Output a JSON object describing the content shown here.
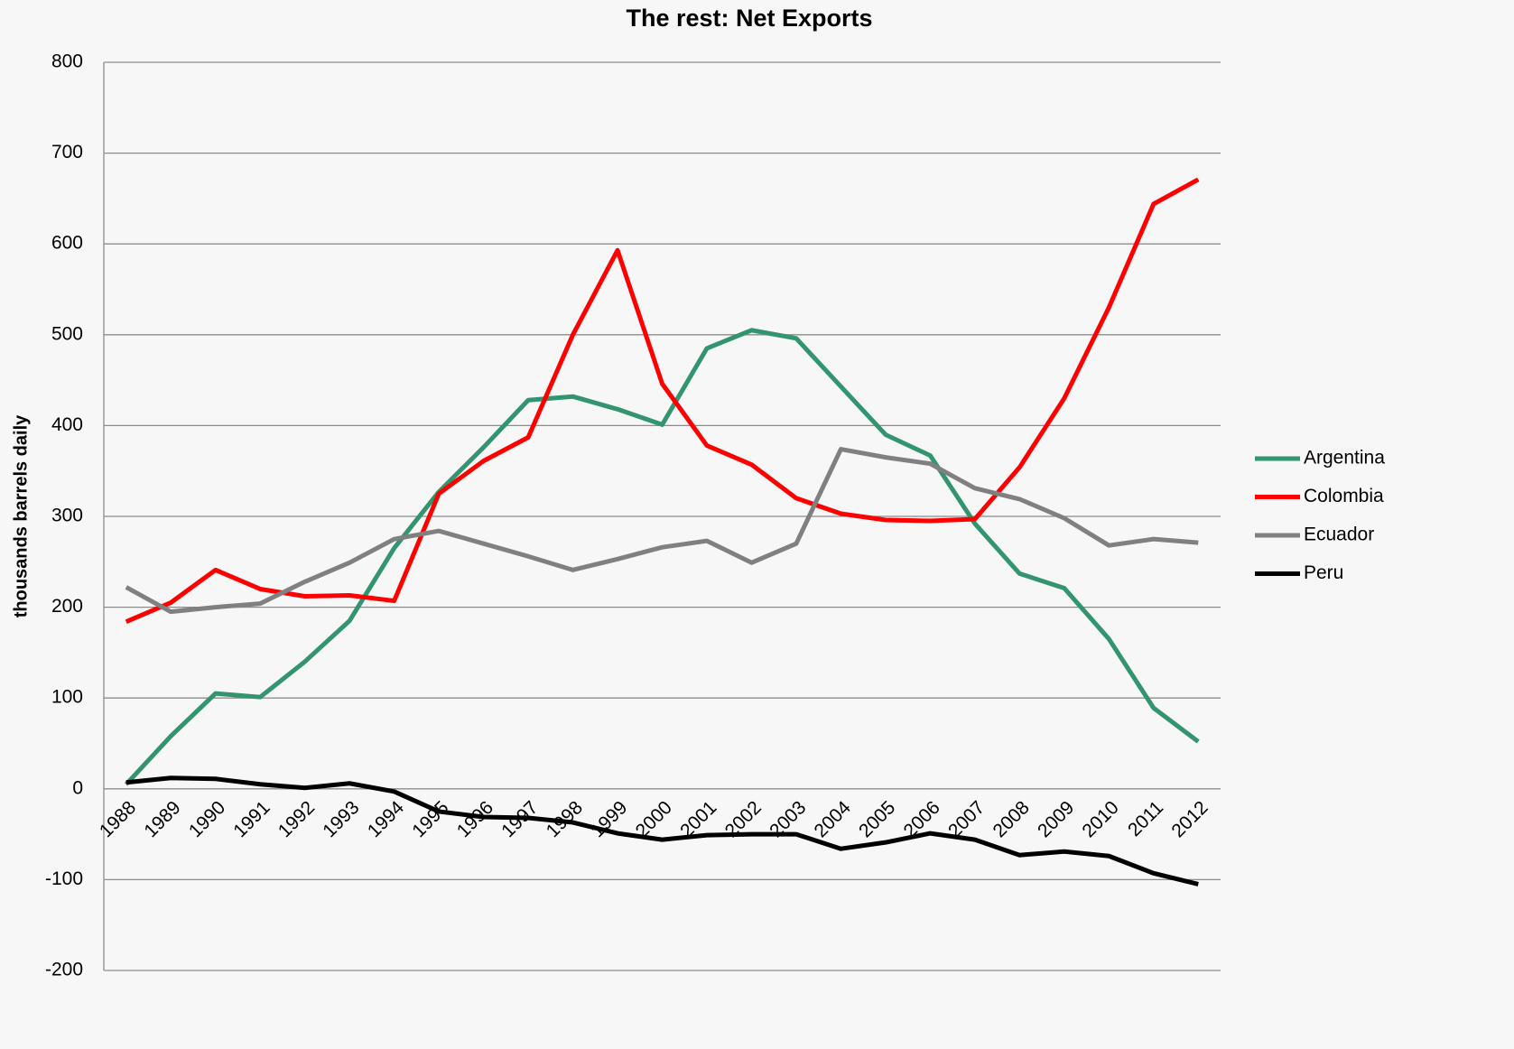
{
  "chart_data": {
    "type": "line",
    "title": "The rest: Net Exports",
    "ylabel": "thousands barrels daily",
    "categories": [
      "1988",
      "1989",
      "1990",
      "1991",
      "1992",
      "1993",
      "1994",
      "1995",
      "1996",
      "1997",
      "1998",
      "1999",
      "2000",
      "2001",
      "2002",
      "2003",
      "2004",
      "2005",
      "2006",
      "2007",
      "2008",
      "2009",
      "2010",
      "2011",
      "2012"
    ],
    "series": [
      {
        "name": "Argentina",
        "color": "#339470",
        "values": [
          5,
          58,
          105,
          101,
          140,
          185,
          265,
          327,
          376,
          428,
          432,
          418,
          401,
          485,
          505,
          496,
          443,
          390,
          367,
          292,
          237,
          221,
          165,
          89,
          52
        ]
      },
      {
        "name": "Colombia",
        "color": "#ff0000",
        "values": [
          184,
          205,
          241,
          220,
          212,
          213,
          207,
          325,
          361,
          387,
          500,
          593,
          446,
          378,
          357,
          320,
          303,
          296,
          295,
          297,
          354,
          430,
          530,
          644,
          671
        ]
      },
      {
        "name": "Ecuador",
        "color": "#808080",
        "values": [
          222,
          195,
          200,
          204,
          228,
          249,
          275,
          284,
          270,
          256,
          241,
          253,
          266,
          273,
          249,
          270,
          374,
          365,
          358,
          331,
          319,
          298,
          268,
          275,
          271
        ]
      },
      {
        "name": "Peru",
        "color": "#000000",
        "values": [
          7,
          12,
          11,
          5,
          1,
          6,
          -3,
          -25,
          -31,
          -32,
          -37,
          -49,
          -56,
          -51,
          -50,
          -50,
          -66,
          -59,
          -49,
          -56,
          -73,
          -69,
          -74,
          -93,
          -105
        ]
      }
    ],
    "ylim": [
      -200,
      800
    ],
    "yticks": [
      -200,
      -100,
      0,
      100,
      200,
      300,
      400,
      500,
      600,
      700,
      800
    ],
    "grid": true,
    "legend": "right"
  }
}
